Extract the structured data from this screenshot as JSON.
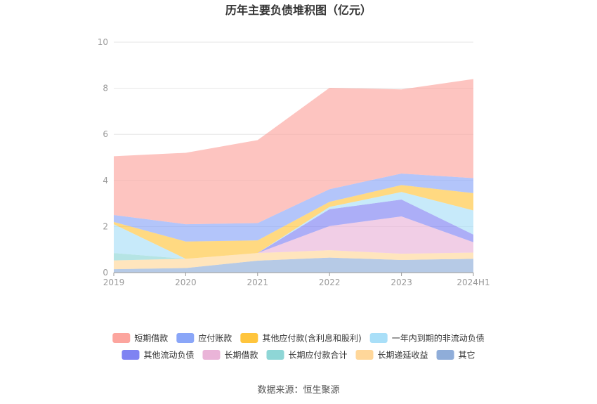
{
  "chart_data": {
    "type": "area",
    "stacked": true,
    "title": "历年主要负债堆积图（亿元）",
    "categories": [
      "2019",
      "2020",
      "2021",
      "2022",
      "2023",
      "2024H1"
    ],
    "ylim": [
      0,
      10
    ],
    "yticks": [
      0,
      2,
      4,
      6,
      8,
      10
    ],
    "grid": true,
    "legend_position": "bottom",
    "series": [
      {
        "name": "其它",
        "color": "#8fadd9",
        "values": [
          0.15,
          0.2,
          0.52,
          0.65,
          0.55,
          0.6
        ]
      },
      {
        "name": "长期递延收益",
        "color": "#ffd79a",
        "values": [
          0.38,
          0.4,
          0.33,
          0.32,
          0.27,
          0.27
        ]
      },
      {
        "name": "长期应付款合计",
        "color": "#8ed6d6",
        "values": [
          0.32,
          0.0,
          0.0,
          0.0,
          0.0,
          0.0
        ]
      },
      {
        "name": "长期借款",
        "color": "#eab4d8",
        "values": [
          0.0,
          0.0,
          0.0,
          1.05,
          1.62,
          0.45
        ]
      },
      {
        "name": "其他流动负债",
        "color": "#7f83f2",
        "values": [
          0.0,
          0.0,
          0.0,
          0.73,
          0.73,
          0.33
        ]
      },
      {
        "name": "一年内到期的非流动负债",
        "color": "#a9dff8",
        "values": [
          1.25,
          0.0,
          0.0,
          0.1,
          0.33,
          1.05
        ]
      },
      {
        "name": "其他应付款(含利息和股利)",
        "color": "#ffc53d",
        "values": [
          0.1,
          0.75,
          0.55,
          0.22,
          0.3,
          0.75
        ]
      },
      {
        "name": "应付账款",
        "color": "#8aa6f8",
        "values": [
          0.3,
          0.75,
          0.75,
          0.55,
          0.5,
          0.65
        ]
      },
      {
        "name": "短期借款",
        "color": "#fca59e",
        "values": [
          2.55,
          3.1,
          3.6,
          4.4,
          3.65,
          4.3
        ]
      }
    ],
    "legend_order": [
      "短期借款",
      "应付账款",
      "其他应付款(含利息和股利)",
      "一年内到期的非流动负债",
      "其他流动负债",
      "长期借款",
      "长期应付款合计",
      "长期递延收益",
      "其它"
    ]
  },
  "source": "数据来源：恒生聚源"
}
